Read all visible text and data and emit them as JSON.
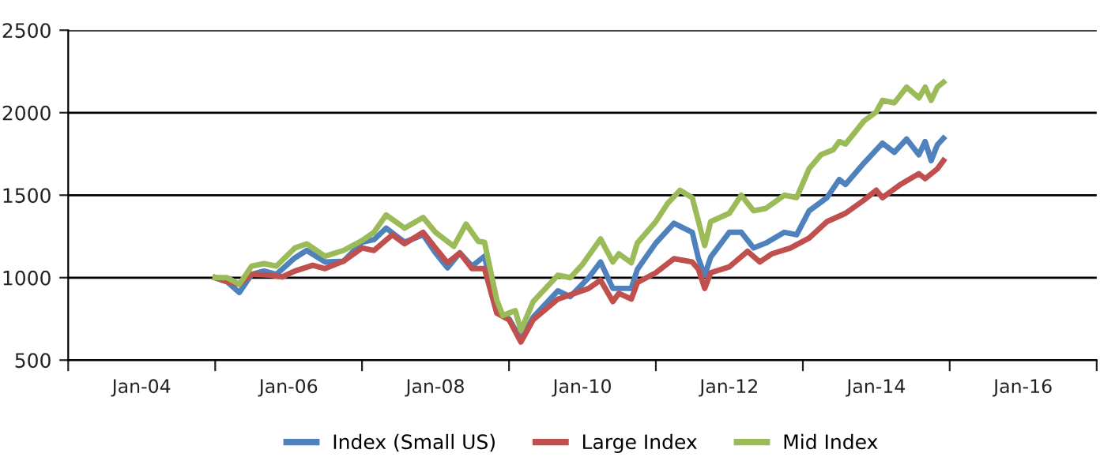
{
  "chart_data": {
    "type": "line",
    "xlim": [
      "2003-01",
      "2017-01"
    ],
    "xticks": [
      {
        "value": "2003-01",
        "label": null
      },
      {
        "value": "2004-01",
        "label": "Jan-04"
      },
      {
        "value": "2005-01",
        "label": null
      },
      {
        "value": "2006-01",
        "label": "Jan-06"
      },
      {
        "value": "2007-01",
        "label": null
      },
      {
        "value": "2008-01",
        "label": "Jan-08"
      },
      {
        "value": "2009-01",
        "label": null
      },
      {
        "value": "2010-01",
        "label": "Jan-10"
      },
      {
        "value": "2011-01",
        "label": null
      },
      {
        "value": "2012-01",
        "label": "Jan-12"
      },
      {
        "value": "2013-01",
        "label": null
      },
      {
        "value": "2014-01",
        "label": "Jan-14"
      },
      {
        "value": "2015-01",
        "label": null
      },
      {
        "value": "2016-01",
        "label": "Jan-16"
      },
      {
        "value": "2017-01",
        "label": null
      }
    ],
    "ylim": [
      500,
      2500
    ],
    "yticks": [
      500,
      1000,
      1500,
      2000,
      2500
    ],
    "grid": "y",
    "legend": "bottom",
    "marker": "none",
    "line_style": "solid",
    "series": [
      {
        "name": "Index (Small US)",
        "color": "#4f81bd",
        "x": [
          "2005-01",
          "2005-03",
          "2005-05",
          "2005-07",
          "2005-09",
          "2005-11",
          "2006-02",
          "2006-04",
          "2006-07",
          "2006-10",
          "2007-01",
          "2007-03",
          "2007-05",
          "2007-08",
          "2007-11",
          "2008-01",
          "2008-03",
          "2008-05",
          "2008-07",
          "2008-09",
          "2008-11",
          "2009-01",
          "2009-03",
          "2009-05",
          "2009-09",
          "2009-11",
          "2010-02",
          "2010-04",
          "2010-06",
          "2010-09",
          "2010-10",
          "2011-01",
          "2011-04",
          "2011-07",
          "2011-08",
          "2011-09",
          "2011-10",
          "2012-01",
          "2012-03",
          "2012-05",
          "2012-07",
          "2012-10",
          "2012-12",
          "2013-02",
          "2013-05",
          "2013-07",
          "2013-08",
          "2013-11",
          "2014-02",
          "2014-04",
          "2014-06",
          "2014-08",
          "2014-09",
          "2014-10",
          "2014-11",
          "2014-12"
        ],
        "values": [
          1000,
          975,
          910,
          1020,
          1040,
          1020,
          1120,
          1165,
          1095,
          1100,
          1215,
          1230,
          1300,
          1215,
          1260,
          1150,
          1060,
          1150,
          1070,
          1130,
          800,
          750,
          625,
          760,
          920,
          885,
          1000,
          1095,
          935,
          935,
          1050,
          1210,
          1330,
          1275,
          1115,
          1015,
          1125,
          1275,
          1275,
          1180,
          1210,
          1275,
          1260,
          1405,
          1485,
          1595,
          1565,
          1695,
          1815,
          1760,
          1840,
          1745,
          1825,
          1710,
          1805,
          1845
        ]
      },
      {
        "name": "Large Index",
        "color": "#c0504d",
        "x": [
          "2005-01",
          "2005-03",
          "2005-05",
          "2005-07",
          "2005-10",
          "2005-12",
          "2006-02",
          "2006-05",
          "2006-07",
          "2006-10",
          "2007-01",
          "2007-03",
          "2007-06",
          "2007-08",
          "2007-11",
          "2008-01",
          "2008-03",
          "2008-05",
          "2008-07",
          "2008-09",
          "2008-11",
          "2009-01",
          "2009-03",
          "2009-05",
          "2009-09",
          "2010-02",
          "2010-04",
          "2010-06",
          "2010-07",
          "2010-09",
          "2010-10",
          "2011-01",
          "2011-04",
          "2011-07",
          "2011-08",
          "2011-09",
          "2011-10",
          "2012-01",
          "2012-04",
          "2012-06",
          "2012-08",
          "2012-11",
          "2013-02",
          "2013-05",
          "2013-08",
          "2013-11",
          "2014-01",
          "2014-02",
          "2014-05",
          "2014-08",
          "2014-09",
          "2014-11",
          "2014-12"
        ],
        "values": [
          1000,
          975,
          960,
          1020,
          1015,
          1005,
          1040,
          1075,
          1055,
          1100,
          1180,
          1165,
          1260,
          1205,
          1275,
          1180,
          1090,
          1150,
          1055,
          1055,
          785,
          745,
          610,
          745,
          870,
          935,
          985,
          855,
          905,
          870,
          970,
          1030,
          1115,
          1095,
          1050,
          935,
          1030,
          1065,
          1160,
          1095,
          1145,
          1180,
          1240,
          1340,
          1390,
          1470,
          1530,
          1485,
          1565,
          1630,
          1600,
          1660,
          1710
        ]
      },
      {
        "name": "Mid Index",
        "color": "#9bbb59",
        "x": [
          "2005-01",
          "2005-03",
          "2005-05",
          "2005-07",
          "2005-09",
          "2005-11",
          "2006-02",
          "2006-04",
          "2006-07",
          "2006-10",
          "2007-01",
          "2007-03",
          "2007-05",
          "2007-08",
          "2007-11",
          "2008-01",
          "2008-04",
          "2008-06",
          "2008-08",
          "2008-09",
          "2008-11",
          "2008-12",
          "2009-02",
          "2009-03",
          "2009-05",
          "2009-09",
          "2009-11",
          "2010-01",
          "2010-04",
          "2010-06",
          "2010-07",
          "2010-09",
          "2010-10",
          "2011-01",
          "2011-03",
          "2011-05",
          "2011-07",
          "2011-08",
          "2011-09",
          "2011-10",
          "2012-01",
          "2012-03",
          "2012-05",
          "2012-07",
          "2012-10",
          "2012-12",
          "2013-02",
          "2013-04",
          "2013-06",
          "2013-07",
          "2013-08",
          "2013-11",
          "2014-01",
          "2014-02",
          "2014-04",
          "2014-06",
          "2014-08",
          "2014-09",
          "2014-10",
          "2014-11",
          "2014-12"
        ],
        "values": [
          1000,
          1000,
          960,
          1070,
          1085,
          1070,
          1180,
          1205,
          1130,
          1165,
          1225,
          1275,
          1380,
          1300,
          1365,
          1275,
          1190,
          1325,
          1220,
          1215,
          865,
          770,
          800,
          680,
          855,
          1015,
          1000,
          1080,
          1235,
          1095,
          1145,
          1090,
          1210,
          1340,
          1450,
          1530,
          1485,
          1340,
          1195,
          1340,
          1390,
          1500,
          1405,
          1420,
          1500,
          1485,
          1660,
          1745,
          1775,
          1825,
          1810,
          1950,
          2005,
          2075,
          2060,
          2155,
          2090,
          2155,
          2075,
          2155,
          2185
        ]
      }
    ]
  }
}
